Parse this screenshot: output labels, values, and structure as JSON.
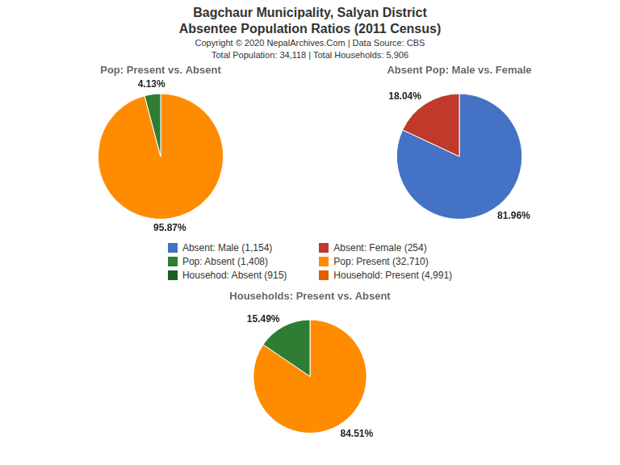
{
  "title": [
    "Bagchaur Municipality, Salyan District",
    "Absentee Population Ratios (2011 Census)"
  ],
  "subtitle": [
    "Copyright © 2020 NepalArchives.Com | Data Source: CBS",
    "Total Population: 34,118 | Total Households: 5,906"
  ],
  "series": [
    {
      "name": "Absent: Male (1,154)",
      "color": "#4472c4"
    },
    {
      "name": "Absent: Female (254)",
      "color": "#c0392b"
    },
    {
      "name": "Pop: Absent (1,408)",
      "color": "#2e7d32"
    },
    {
      "name": "Pop: Present (32,710)",
      "color": "#ff8c00"
    },
    {
      "name": "Househod: Absent (915)",
      "color": "#1b5e20"
    },
    {
      "name": "Household: Present (4,991)",
      "color": "#e65c00"
    }
  ],
  "chart_data": [
    {
      "type": "pie",
      "title": "Pop: Present vs. Absent",
      "values": [
        95.87,
        4.13
      ],
      "value_labels": [
        "95.87%",
        "4.13%"
      ],
      "colors": [
        "#ff8c00",
        "#2e7d32"
      ],
      "data_labels": true
    },
    {
      "type": "pie",
      "title": "Absent Pop: Male vs. Female",
      "values": [
        81.96,
        18.04
      ],
      "value_labels": [
        "81.96%",
        "18.04%"
      ],
      "colors": [
        "#4472c4",
        "#c0392b"
      ],
      "data_labels": true
    },
    {
      "type": "pie",
      "title": "Households: Present vs. Absent",
      "values": [
        84.51,
        15.49
      ],
      "value_labels": [
        "84.51%",
        "15.49%"
      ],
      "colors": [
        "#ff8c00",
        "#2e7d32"
      ],
      "data_labels": true
    }
  ]
}
